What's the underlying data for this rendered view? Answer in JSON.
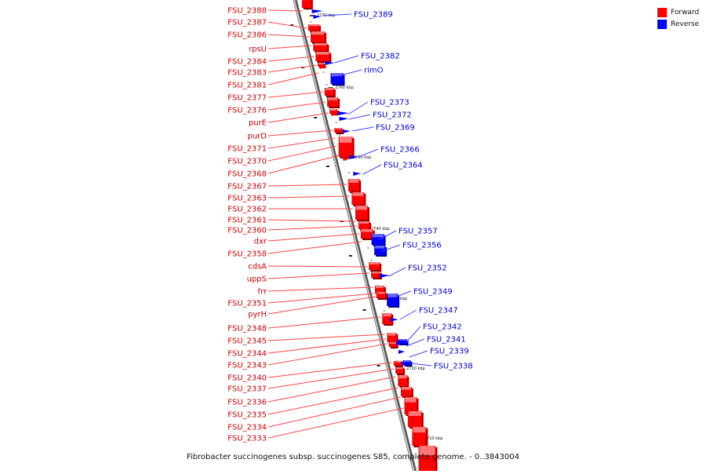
{
  "caption": "Fibrobacter succinogenes subsp. succinogenes S85, complete genome. - 0..3843004",
  "legend": [
    {
      "label": "Forward",
      "color": "#ff0000"
    },
    {
      "label": "Reverse",
      "color": "#0000ff"
    }
  ],
  "colors": {
    "forward": "#ff0000",
    "forward_label": "#cc0000",
    "reverse": "#0000ff",
    "reverse_label": "#0000cc",
    "backbone": "#888888"
  },
  "ticks": [
    "2770 kbp",
    "2760 kbp",
    "2750 kbp",
    "2740 kbp",
    "2730 kbp",
    "2720 kbp",
    "2710 kbp"
  ],
  "forward_genes": [
    "FSU_2388",
    "FSU_2387",
    "FSU_2386",
    "rpsU",
    "FSU_2384",
    "FSU_2383",
    "FSU_2381",
    "FSU_2377",
    "FSU_2376",
    "purE",
    "purD",
    "FSU_2371",
    "FSU_2370",
    "FSU_2368",
    "FSU_2367",
    "FSU_2363",
    "FSU_2362",
    "FSU_2361",
    "FSU_2360",
    "dxr",
    "FSU_2358",
    "cdsA",
    "uppS",
    "frr",
    "FSU_2351",
    "pyrH",
    "FSU_2348",
    "FSU_2345",
    "FSU_2344",
    "FSU_2343",
    "FSU_2340",
    "FSU_2337",
    "FSU_2336",
    "FSU_2335",
    "FSU_2334",
    "FSU_2333"
  ],
  "reverse_genes": [
    "FSU_2389",
    "FSU_2382",
    "rimO",
    "FSU_2373",
    "FSU_2372",
    "FSU_2369",
    "FSU_2366",
    "FSU_2364",
    "FSU_2357",
    "FSU_2356",
    "FSU_2352",
    "FSU_2349",
    "FSU_2347",
    "FSU_2342",
    "FSU_2341",
    "FSU_2339",
    "FSU_2338"
  ]
}
